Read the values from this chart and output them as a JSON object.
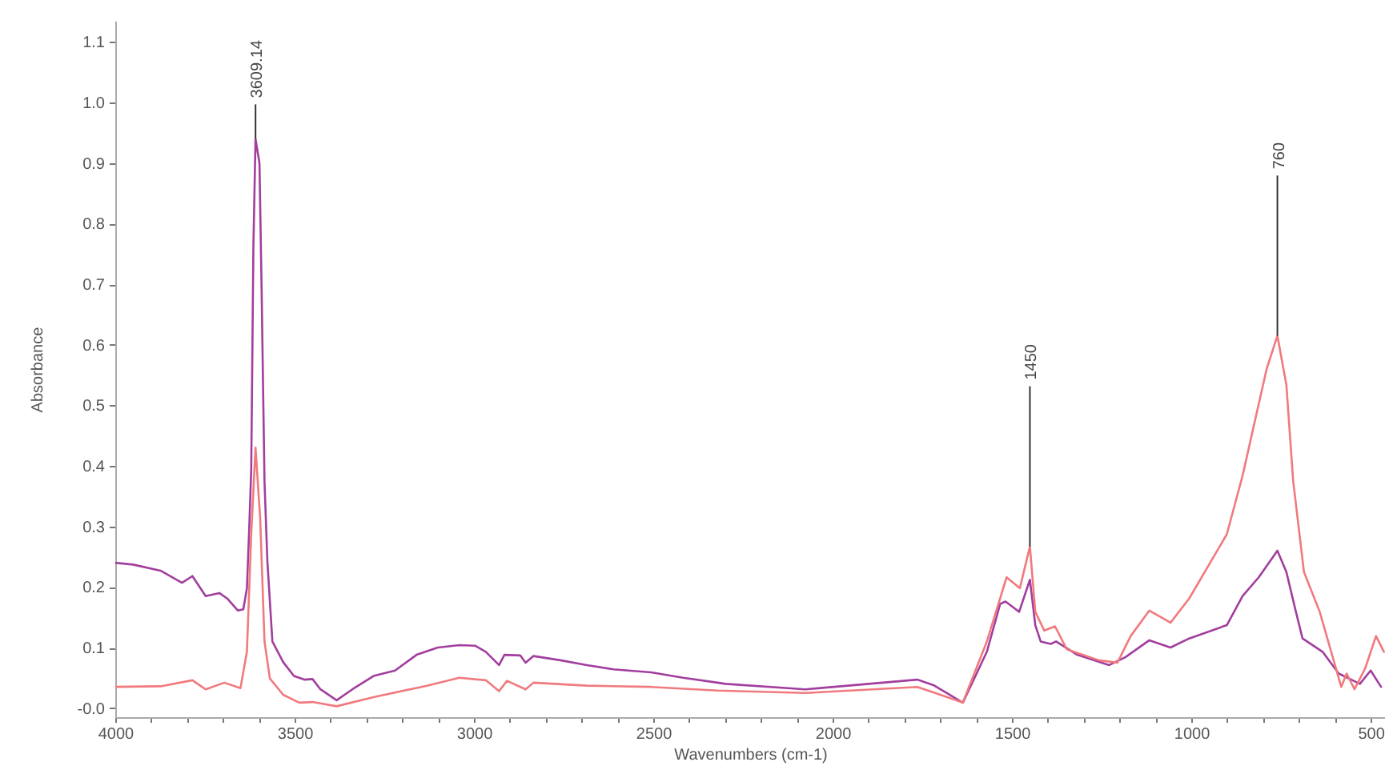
{
  "chart_data": {
    "type": "line",
    "xlabel": "Wavenumbers (cm-1)",
    "ylabel": "Absorbance",
    "xlim": [
      4000,
      460
    ],
    "ylim": [
      -0.015,
      1.135
    ],
    "xticks": [
      4000,
      {
        "value": 3900,
        "label": null
      },
      {
        "value": 3800,
        "label": null
      },
      {
        "value": 3700,
        "label": null
      },
      {
        "value": 3600,
        "label": null
      },
      3500,
      {
        "value": 3400,
        "label": null
      },
      {
        "value": 3300,
        "label": null
      },
      {
        "value": 3200,
        "label": null
      },
      {
        "value": 3100,
        "label": null
      },
      3000,
      {
        "value": 2900,
        "label": null
      },
      {
        "value": 2800,
        "label": null
      },
      {
        "value": 2700,
        "label": null
      },
      {
        "value": 2600,
        "label": null
      },
      2500,
      {
        "value": 2400,
        "label": null
      },
      {
        "value": 2300,
        "label": null
      },
      {
        "value": 2200,
        "label": null
      },
      {
        "value": 2100,
        "label": null
      },
      2000,
      {
        "value": 1900,
        "label": null
      },
      {
        "value": 1800,
        "label": null
      },
      {
        "value": 1700,
        "label": null
      },
      {
        "value": 1600,
        "label": null
      },
      1500,
      {
        "value": 1400,
        "label": null
      },
      {
        "value": 1300,
        "label": null
      },
      {
        "value": 1200,
        "label": null
      },
      {
        "value": 1100,
        "label": null
      },
      1000,
      {
        "value": 900,
        "label": null
      },
      {
        "value": 800,
        "label": null
      },
      {
        "value": 700,
        "label": null
      },
      {
        "value": 600,
        "label": null
      },
      500
    ],
    "yticks": [
      {
        "value": 0,
        "label": "-0.0"
      },
      0.1,
      0.2,
      0.3,
      0.4,
      0.5,
      0.6,
      0.7,
      0.8,
      0.9,
      {
        "value": 1,
        "label": "1.0"
      },
      1.1
    ],
    "grid": false,
    "series": [
      {
        "color": "#a23e9e",
        "x": [
          4000,
          3950,
          3874,
          3814,
          3785,
          3748,
          3710,
          3688,
          3658,
          3643,
          3633,
          3627,
          3621,
          3615,
          3609,
          3598,
          3592,
          3584,
          3576,
          3562,
          3532,
          3502,
          3473,
          3450,
          3428,
          3383,
          3339,
          3280,
          3220,
          3160,
          3101,
          3041,
          2997,
          2967,
          2930,
          2915,
          2871,
          2856,
          2834,
          2759,
          2685,
          2611,
          2506,
          2417,
          2321,
          2299,
          2076,
          1957,
          1764,
          1719,
          1637,
          1570,
          1533,
          1518,
          1480,
          1450,
          1435,
          1420,
          1392,
          1377,
          1318,
          1229,
          1184,
          1117,
          1058,
          1006,
          901,
          857,
          812,
          760,
          735,
          710,
          690,
          634,
          589,
          530,
          500,
          471
        ],
        "values": [
          0.24,
          0.237,
          0.227,
          0.207,
          0.218,
          0.185,
          0.19,
          0.181,
          0.161,
          0.163,
          0.198,
          0.29,
          0.393,
          0.76,
          0.94,
          0.9,
          0.69,
          0.375,
          0.243,
          0.11,
          0.076,
          0.053,
          0.047,
          0.048,
          0.031,
          0.013,
          0.031,
          0.053,
          0.062,
          0.088,
          0.1,
          0.104,
          0.103,
          0.093,
          0.071,
          0.088,
          0.087,
          0.075,
          0.086,
          0.079,
          0.071,
          0.064,
          0.059,
          0.05,
          0.042,
          0.04,
          0.031,
          0.037,
          0.047,
          0.038,
          0.009,
          0.093,
          0.172,
          0.176,
          0.159,
          0.212,
          0.137,
          0.11,
          0.106,
          0.11,
          0.088,
          0.071,
          0.084,
          0.112,
          0.1,
          0.115,
          0.137,
          0.185,
          0.216,
          0.26,
          0.225,
          0.163,
          0.115,
          0.093,
          0.057,
          0.04,
          0.062,
          0.035
        ]
      },
      {
        "color": "#f07a7e",
        "x": [
          4000,
          3874,
          3785,
          3748,
          3696,
          3651,
          3633,
          3621,
          3609,
          3596,
          3584,
          3569,
          3532,
          3487,
          3450,
          3383,
          3280,
          3131,
          3041,
          2967,
          2930,
          2908,
          2856,
          2834,
          2685,
          2506,
          2321,
          2076,
          1764,
          1719,
          1637,
          1570,
          1515,
          1478,
          1450,
          1435,
          1410,
          1380,
          1347,
          1258,
          1206,
          1169,
          1117,
          1058,
          1006,
          901,
          857,
          827,
          790,
          760,
          735,
          716,
          686,
          642,
          582,
          567,
          545,
          515,
          485,
          463
        ],
        "values": [
          0.035,
          0.036,
          0.046,
          0.031,
          0.042,
          0.033,
          0.093,
          0.287,
          0.43,
          0.313,
          0.11,
          0.049,
          0.022,
          0.009,
          0.01,
          0.003,
          0.018,
          0.037,
          0.05,
          0.046,
          0.028,
          0.045,
          0.031,
          0.042,
          0.037,
          0.035,
          0.029,
          0.025,
          0.035,
          0.026,
          0.009,
          0.11,
          0.216,
          0.198,
          0.267,
          0.159,
          0.128,
          0.135,
          0.097,
          0.079,
          0.075,
          0.119,
          0.161,
          0.141,
          0.181,
          0.287,
          0.384,
          0.463,
          0.56,
          0.615,
          0.534,
          0.375,
          0.225,
          0.159,
          0.035,
          0.057,
          0.031,
          0.066,
          0.119,
          0.093
        ]
      }
    ],
    "annotations": [
      {
        "text": "3609.14",
        "x": 3609,
        "y": 0.94
      },
      {
        "text": "1450",
        "x": 1450,
        "y": 0.267
      },
      {
        "text": "760",
        "x": 760,
        "y": 0.615
      }
    ]
  }
}
